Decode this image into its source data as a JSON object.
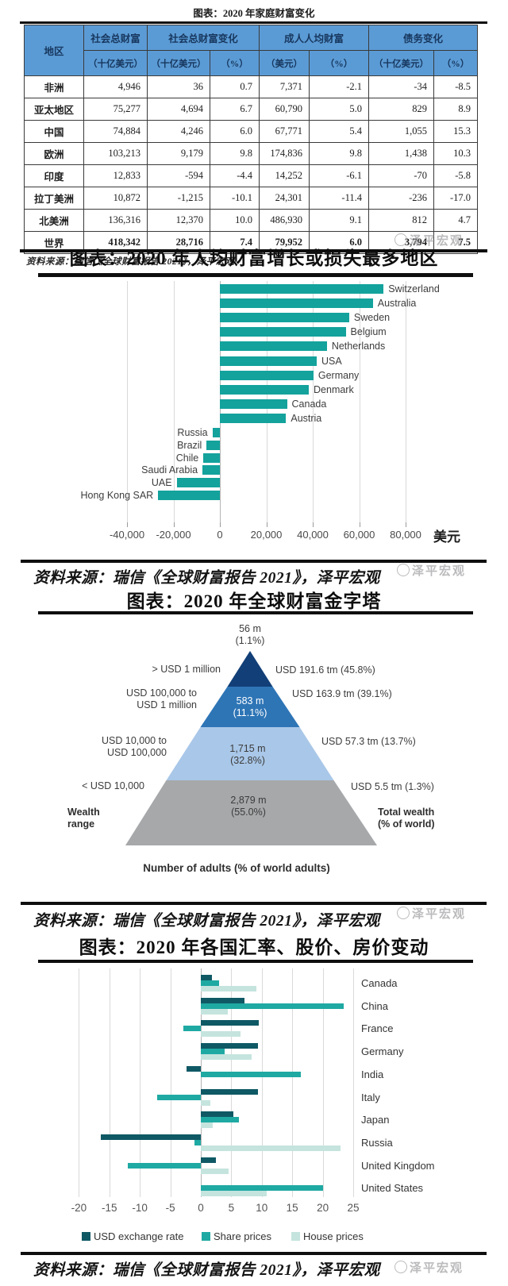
{
  "watermark": {
    "text": "泽平宏观"
  },
  "chart_data": [
    {
      "type": "table",
      "title": "图表：2020 年家庭财富变化",
      "source": "资料来源：瑞信《全球财富报告 2021》，泽平宏观",
      "header_groups": [
        {
          "label": "地区",
          "rowspan": 2
        },
        {
          "label": "社会总财富",
          "cols": 1
        },
        {
          "label": "社会总财富变化",
          "cols": 2
        },
        {
          "label": "成人人均财富",
          "cols": 2
        },
        {
          "label": "债务变化",
          "cols": 2
        }
      ],
      "sub_headers": [
        "（十亿美元）",
        "（十亿美元）",
        "（%）",
        "（美元）",
        "（%）",
        "（十亿美元）",
        "（%）"
      ],
      "rows": [
        {
          "region": "非洲",
          "cells": [
            "4,946",
            "36",
            "0.7",
            "7,371",
            "-2.1",
            "-34",
            "-8.5"
          ],
          "bold": false
        },
        {
          "region": "亚太地区",
          "cells": [
            "75,277",
            "4,694",
            "6.7",
            "60,790",
            "5.0",
            "829",
            "8.9"
          ],
          "bold": false
        },
        {
          "region": "中国",
          "cells": [
            "74,884",
            "4,246",
            "6.0",
            "67,771",
            "5.4",
            "1,055",
            "15.3"
          ],
          "bold": false
        },
        {
          "region": "欧洲",
          "cells": [
            "103,213",
            "9,179",
            "9.8",
            "174,836",
            "9.8",
            "1,438",
            "10.3"
          ],
          "bold": false
        },
        {
          "region": "印度",
          "cells": [
            "12,833",
            "-594",
            "-4.4",
            "14,252",
            "-6.1",
            "-70",
            "-5.8"
          ],
          "bold": false
        },
        {
          "region": "拉丁美洲",
          "cells": [
            "10,872",
            "-1,215",
            "-10.1",
            "24,301",
            "-11.4",
            "-236",
            "-17.0"
          ],
          "bold": false
        },
        {
          "region": "北美洲",
          "cells": [
            "136,316",
            "12,370",
            "10.0",
            "486,930",
            "9.1",
            "812",
            "4.7"
          ],
          "bold": false
        },
        {
          "region": "世界",
          "cells": [
            "418,342",
            "28,716",
            "7.4",
            "79,952",
            "6.0",
            "3,794",
            "7.5"
          ],
          "bold": true
        }
      ]
    },
    {
      "type": "bar",
      "orientation": "horizontal",
      "title": "图表：2020 年人均财富增长或损失最多地区",
      "source": "资料来源：瑞信《全球财富报告 2021》，泽平宏观",
      "unit_label": "美元",
      "bar_color": "#13a29c",
      "xlim": [
        -45000,
        92000
      ],
      "x_ticks": [
        {
          "value": -40000,
          "label": "-40,000"
        },
        {
          "value": -20000,
          "label": "-20,000"
        },
        {
          "value": 0,
          "label": "0"
        },
        {
          "value": 20000,
          "label": "20,000"
        },
        {
          "value": 40000,
          "label": "40,000"
        },
        {
          "value": 60000,
          "label": "60,000"
        },
        {
          "value": 80000,
          "label": "80,000"
        }
      ],
      "categories": [
        "Switzerland",
        "Australia",
        "Sweden",
        "Belgium",
        "Netherlands",
        "USA",
        "Germany",
        "Denmark",
        "Canada",
        "Austria",
        "Russia",
        "Brazil",
        "Chile",
        "Saudi Arabia",
        "UAE",
        "Hong Kong SAR"
      ],
      "values": [
        70500,
        65900,
        55700,
        54200,
        46100,
        41700,
        40300,
        38300,
        28900,
        28500,
        -3200,
        -5700,
        -7100,
        -7500,
        -18600,
        -26600
      ]
    },
    {
      "type": "pyramid",
      "title": "图表：2020 年全球财富金字塔",
      "source": "资料来源：瑞信《全球财富报告 2021》，泽平宏观",
      "tiers": [
        {
          "wealth_range_lines": [
            "> USD 1 million"
          ],
          "adults": "56 m",
          "adults_pct": "(1.1%)",
          "total_wealth": "USD 191.6 tm (45.8%)",
          "color": "#123f77"
        },
        {
          "wealth_range_lines": [
            "USD 100,000 to",
            "USD 1 million"
          ],
          "adults": "583 m",
          "adults_pct": "(11.1%)",
          "total_wealth": "USD 163.9 tm (39.1%)",
          "color": "#2e75b6"
        },
        {
          "wealth_range_lines": [
            "USD 10,000 to",
            "USD 100,000"
          ],
          "adults": "1,715 m",
          "adults_pct": "(32.8%)",
          "total_wealth": "USD 57.3 tm (13.7%)",
          "color": "#a9c7e8"
        },
        {
          "wealth_range_lines": [
            "< USD 10,000"
          ],
          "adults": "2,879 m",
          "adults_pct": "(55.0%)",
          "total_wealth": "USD 5.5 tm (1.3%)",
          "color": "#a6a8aa"
        }
      ],
      "axis_left_line1": "Wealth",
      "axis_left_line2": "range",
      "axis_right_line1": "Total wealth",
      "axis_right_line2": "(% of world)",
      "caption": "Number of adults (% of world adults)"
    },
    {
      "type": "bar",
      "orientation": "horizontal",
      "grouped": true,
      "title": "图表：2020 年各国汇率、股价、房价变动",
      "source": "资料来源：瑞信《全球财富报告 2021》，泽平宏观",
      "xlim": [
        -22,
        27
      ],
      "x_ticks": [
        {
          "value": -20,
          "label": "-20"
        },
        {
          "value": -15,
          "label": "-15"
        },
        {
          "value": -10,
          "label": "-10"
        },
        {
          "value": -5,
          "label": "-5"
        },
        {
          "value": 0,
          "label": "0"
        },
        {
          "value": 5,
          "label": "5"
        },
        {
          "value": 10,
          "label": "10"
        },
        {
          "value": 15,
          "label": "15"
        },
        {
          "value": 20,
          "label": "20"
        },
        {
          "value": 25,
          "label": "25"
        }
      ],
      "categories": [
        "Canada",
        "China",
        "France",
        "Germany",
        "India",
        "Italy",
        "Japan",
        "Russia",
        "United Kingdom",
        "United States"
      ],
      "series": [
        {
          "name": "USD exchange rate",
          "color": "#0f5965",
          "values": [
            1.8,
            7.1,
            9.5,
            9.4,
            -2.4,
            9.4,
            5.4,
            -16.4,
            2.5,
            0
          ]
        },
        {
          "name": "Share prices",
          "color": "#1fa9a3",
          "values": [
            3.0,
            23.4,
            -2.8,
            3.9,
            16.4,
            -7.1,
            6.2,
            -1.0,
            -12.0,
            20.0
          ]
        },
        {
          "name": "House prices",
          "color": "#c5e4de",
          "values": [
            9.1,
            4.4,
            6.5,
            8.3,
            0,
            1.6,
            1.9,
            22.9,
            4.6,
            10.8
          ]
        }
      ]
    }
  ]
}
